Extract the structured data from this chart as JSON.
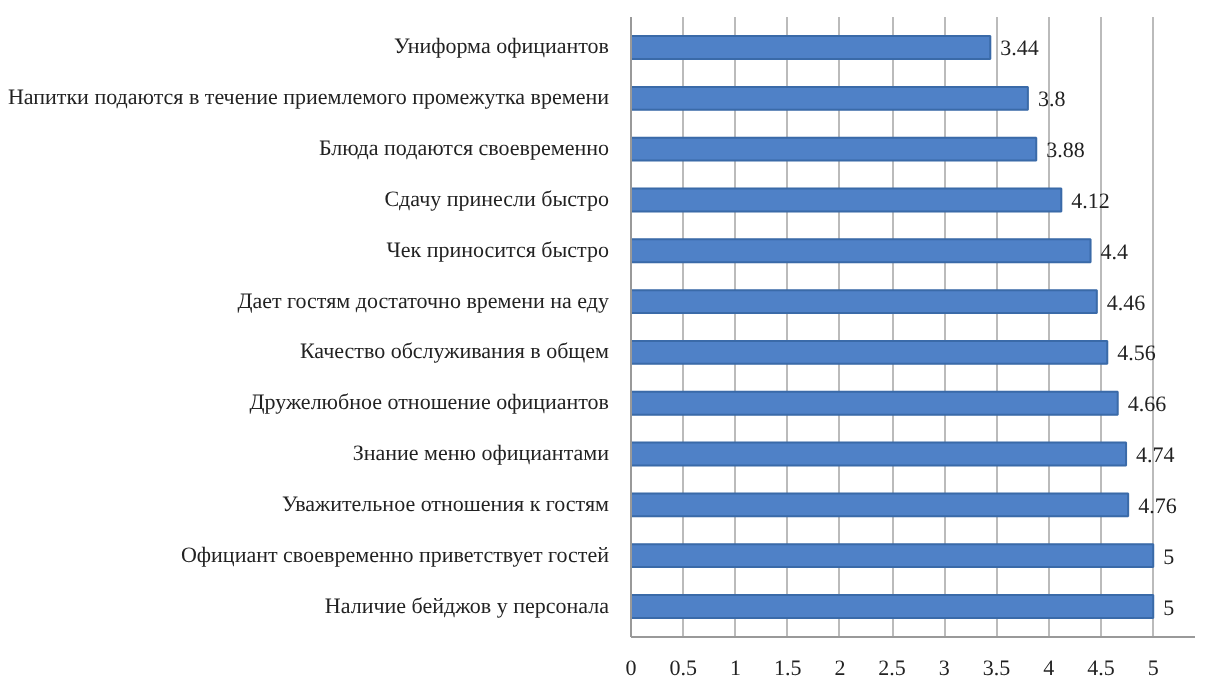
{
  "chart_data": {
    "type": "bar",
    "orientation": "horizontal",
    "categories": [
      "Униформа официантов",
      "Напитки подаются в течение приемлемого промежутка времени",
      "Блюда подаются своевременно",
      "Сдачу принесли быстро",
      "Чек приносится быстро",
      "Дает гостям достаточно времени на еду",
      "Качество обслуживания в общем",
      "Дружелюбное отношение официантов",
      "Знание меню официантами",
      "Уважительное отношения к гостям",
      "Официант своевременно приветствует гостей",
      "Наличие бейджов у персонала"
    ],
    "values": [
      3.44,
      3.8,
      3.88,
      4.12,
      4.4,
      4.46,
      4.56,
      4.66,
      4.74,
      4.76,
      5,
      5
    ],
    "color": "#4f81c7",
    "xlim": [
      0,
      5.4
    ],
    "xticks": [
      0,
      0.5,
      1,
      1.5,
      2,
      2.5,
      3,
      3.5,
      4,
      4.5,
      5
    ],
    "grid": "x",
    "data_labels": true
  }
}
